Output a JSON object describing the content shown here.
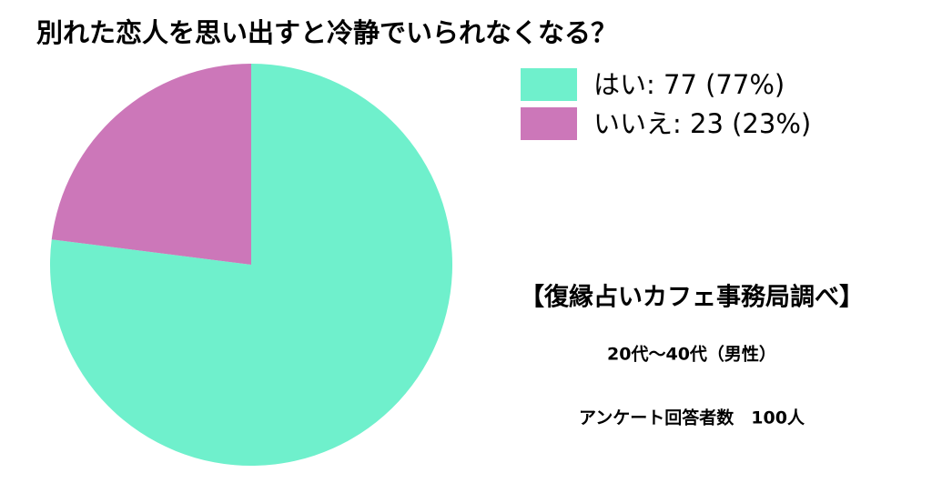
{
  "chart_data": {
    "type": "pie",
    "title": "別れた恋人を思い出すと冷静でいられなくなる？",
    "categories": [
      "はい: 77 (77%)",
      "いいえ: 23 (23%)"
    ],
    "values": [
      77,
      23
    ],
    "colors": [
      "#6ff0cc",
      "#cc77b9"
    ],
    "legend": "top-right",
    "annotations": [
      "【復縁占いカフェ事務局調べ】",
      "20代〜40代（男性）",
      "アンケート回答者数　100人"
    ]
  }
}
